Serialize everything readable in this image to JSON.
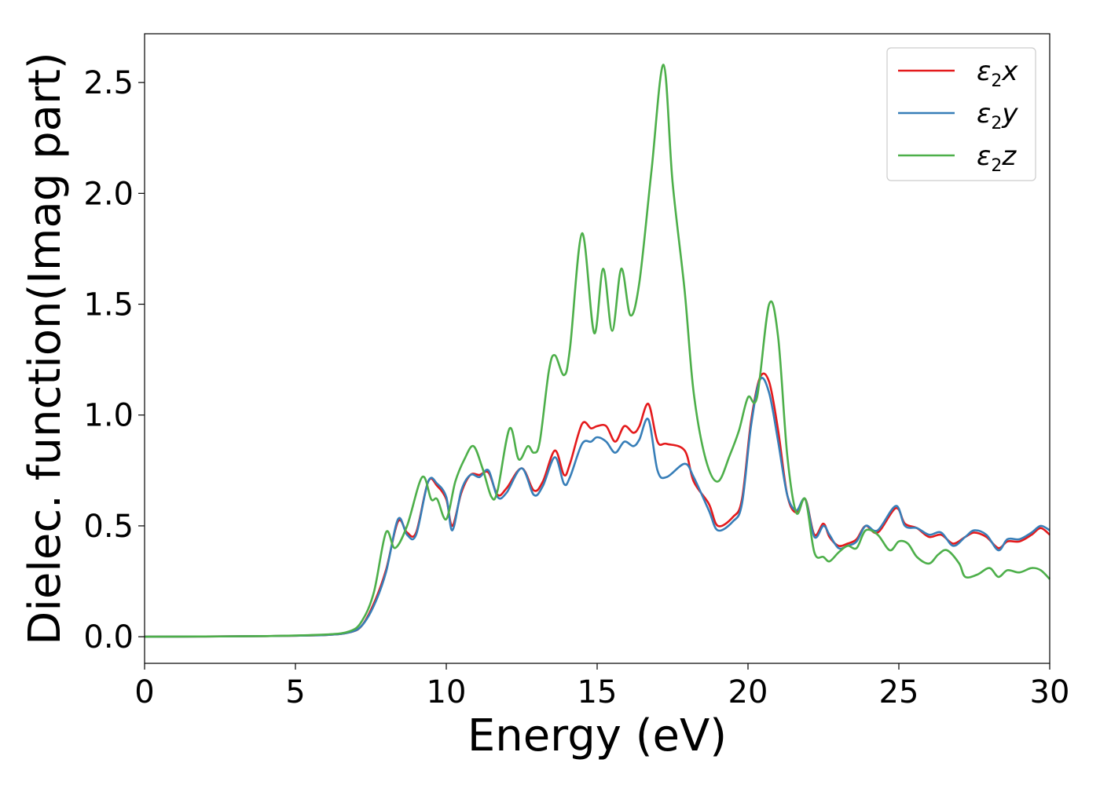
{
  "chart_data": {
    "type": "line",
    "title": "",
    "xlabel": "Energy (eV)",
    "ylabel": "Dielec. function(Imag part)",
    "xlim": [
      0,
      30
    ],
    "ylim": [
      -0.12,
      2.72
    ],
    "xticks": [
      0,
      5,
      10,
      15,
      20,
      25,
      30
    ],
    "xtick_labels": [
      "0",
      "5",
      "10",
      "15",
      "20",
      "25",
      "30"
    ],
    "yticks": [
      0.0,
      0.5,
      1.0,
      1.5,
      2.0,
      2.5
    ],
    "ytick_labels": [
      "0.0",
      "0.5",
      "1.0",
      "1.5",
      "2.0",
      "2.5"
    ],
    "grid": false,
    "legend_position": "top-right",
    "series": [
      {
        "name": "ε2x",
        "color": "#e41a1c",
        "x": [
          0,
          2,
          4,
          6,
          6.8,
          7.2,
          7.6,
          8.0,
          8.4,
          8.7,
          9.0,
          9.4,
          9.7,
          10.0,
          10.2,
          10.5,
          10.8,
          11.1,
          11.4,
          11.7,
          12.0,
          12.5,
          12.9,
          13.2,
          13.6,
          13.9,
          14.1,
          14.5,
          14.8,
          15.0,
          15.3,
          15.6,
          15.9,
          16.2,
          16.4,
          16.7,
          17.0,
          17.3,
          17.9,
          18.2,
          18.7,
          19.0,
          19.5,
          19.8,
          20.1,
          20.4,
          20.7,
          21.0,
          21.3,
          21.6,
          21.9,
          22.2,
          22.5,
          22.7,
          23.0,
          23.3,
          23.6,
          23.9,
          24.3,
          24.9,
          25.2,
          25.6,
          26.0,
          26.4,
          26.8,
          27.2,
          27.5,
          27.9,
          28.3,
          28.6,
          29.0,
          29.4,
          29.7,
          30.0
        ],
        "y": [
          0.0,
          0.001,
          0.003,
          0.008,
          0.02,
          0.05,
          0.15,
          0.3,
          0.52,
          0.47,
          0.47,
          0.7,
          0.68,
          0.62,
          0.5,
          0.65,
          0.73,
          0.73,
          0.74,
          0.64,
          0.67,
          0.76,
          0.66,
          0.7,
          0.84,
          0.73,
          0.78,
          0.96,
          0.94,
          0.95,
          0.95,
          0.88,
          0.95,
          0.92,
          0.95,
          1.05,
          0.88,
          0.87,
          0.84,
          0.7,
          0.6,
          0.5,
          0.54,
          0.62,
          0.97,
          1.17,
          1.15,
          0.93,
          0.64,
          0.56,
          0.62,
          0.46,
          0.51,
          0.45,
          0.41,
          0.42,
          0.44,
          0.5,
          0.47,
          0.58,
          0.51,
          0.49,
          0.45,
          0.46,
          0.42,
          0.45,
          0.47,
          0.45,
          0.4,
          0.43,
          0.43,
          0.46,
          0.49,
          0.46
        ]
      },
      {
        "name": "ε2y",
        "color": "#377eb8",
        "x": [
          0,
          2,
          4,
          6,
          6.8,
          7.2,
          7.6,
          8.0,
          8.4,
          8.7,
          9.0,
          9.4,
          9.7,
          10.0,
          10.2,
          10.5,
          10.8,
          11.1,
          11.4,
          11.7,
          12.0,
          12.5,
          12.9,
          13.2,
          13.6,
          13.9,
          14.1,
          14.5,
          14.8,
          15.0,
          15.3,
          15.6,
          15.9,
          16.2,
          16.4,
          16.7,
          17.0,
          17.3,
          17.9,
          18.2,
          18.7,
          19.0,
          19.5,
          19.8,
          20.1,
          20.4,
          20.7,
          21.0,
          21.3,
          21.6,
          21.9,
          22.2,
          22.5,
          22.7,
          23.0,
          23.3,
          23.6,
          23.9,
          24.3,
          24.9,
          25.2,
          25.6,
          26.0,
          26.4,
          26.8,
          27.2,
          27.5,
          27.9,
          28.3,
          28.6,
          29.0,
          29.4,
          29.7,
          30.0
        ],
        "y": [
          0.0,
          0.001,
          0.003,
          0.008,
          0.02,
          0.05,
          0.14,
          0.29,
          0.53,
          0.46,
          0.46,
          0.7,
          0.69,
          0.63,
          0.48,
          0.66,
          0.73,
          0.72,
          0.75,
          0.63,
          0.65,
          0.76,
          0.64,
          0.68,
          0.81,
          0.69,
          0.72,
          0.87,
          0.88,
          0.9,
          0.88,
          0.83,
          0.88,
          0.86,
          0.89,
          0.98,
          0.75,
          0.72,
          0.78,
          0.72,
          0.57,
          0.48,
          0.52,
          0.6,
          0.95,
          1.16,
          1.1,
          0.88,
          0.64,
          0.57,
          0.62,
          0.45,
          0.5,
          0.46,
          0.4,
          0.41,
          0.43,
          0.5,
          0.48,
          0.59,
          0.5,
          0.49,
          0.46,
          0.47,
          0.41,
          0.45,
          0.48,
          0.46,
          0.39,
          0.44,
          0.44,
          0.47,
          0.5,
          0.48
        ]
      },
      {
        "name": "ε2z",
        "color": "#4daf4a",
        "x": [
          0,
          2,
          4,
          6,
          6.8,
          7.2,
          7.6,
          8.0,
          8.3,
          8.7,
          9.2,
          9.5,
          9.7,
          10.0,
          10.3,
          10.6,
          10.9,
          11.2,
          11.5,
          11.7,
          12.1,
          12.4,
          12.7,
          12.9,
          13.1,
          13.4,
          13.6,
          13.9,
          14.1,
          14.5,
          14.9,
          15.2,
          15.5,
          15.8,
          16.1,
          16.4,
          16.8,
          17.2,
          17.5,
          17.9,
          18.2,
          18.6,
          19.0,
          19.4,
          19.7,
          20.0,
          20.3,
          20.7,
          21.0,
          21.3,
          21.6,
          21.9,
          22.2,
          22.5,
          22.7,
          23.0,
          23.3,
          23.6,
          23.9,
          24.3,
          24.7,
          25.0,
          25.3,
          25.6,
          26.0,
          26.3,
          26.6,
          27.0,
          27.2,
          27.6,
          28.0,
          28.3,
          28.6,
          29.0,
          29.4,
          29.7,
          30.0
        ],
        "y": [
          0.0,
          0.001,
          0.003,
          0.01,
          0.025,
          0.07,
          0.2,
          0.47,
          0.4,
          0.5,
          0.72,
          0.62,
          0.62,
          0.53,
          0.7,
          0.8,
          0.86,
          0.76,
          0.63,
          0.66,
          0.94,
          0.8,
          0.86,
          0.83,
          0.88,
          1.2,
          1.27,
          1.18,
          1.3,
          1.82,
          1.37,
          1.66,
          1.38,
          1.66,
          1.45,
          1.6,
          2.1,
          2.58,
          2.05,
          1.56,
          1.1,
          0.8,
          0.7,
          0.82,
          0.93,
          1.08,
          1.08,
          1.5,
          1.35,
          0.82,
          0.56,
          0.62,
          0.38,
          0.36,
          0.34,
          0.38,
          0.41,
          0.4,
          0.48,
          0.46,
          0.39,
          0.43,
          0.42,
          0.36,
          0.33,
          0.37,
          0.39,
          0.33,
          0.27,
          0.28,
          0.31,
          0.27,
          0.3,
          0.29,
          0.31,
          0.3,
          0.26
        ]
      }
    ]
  }
}
